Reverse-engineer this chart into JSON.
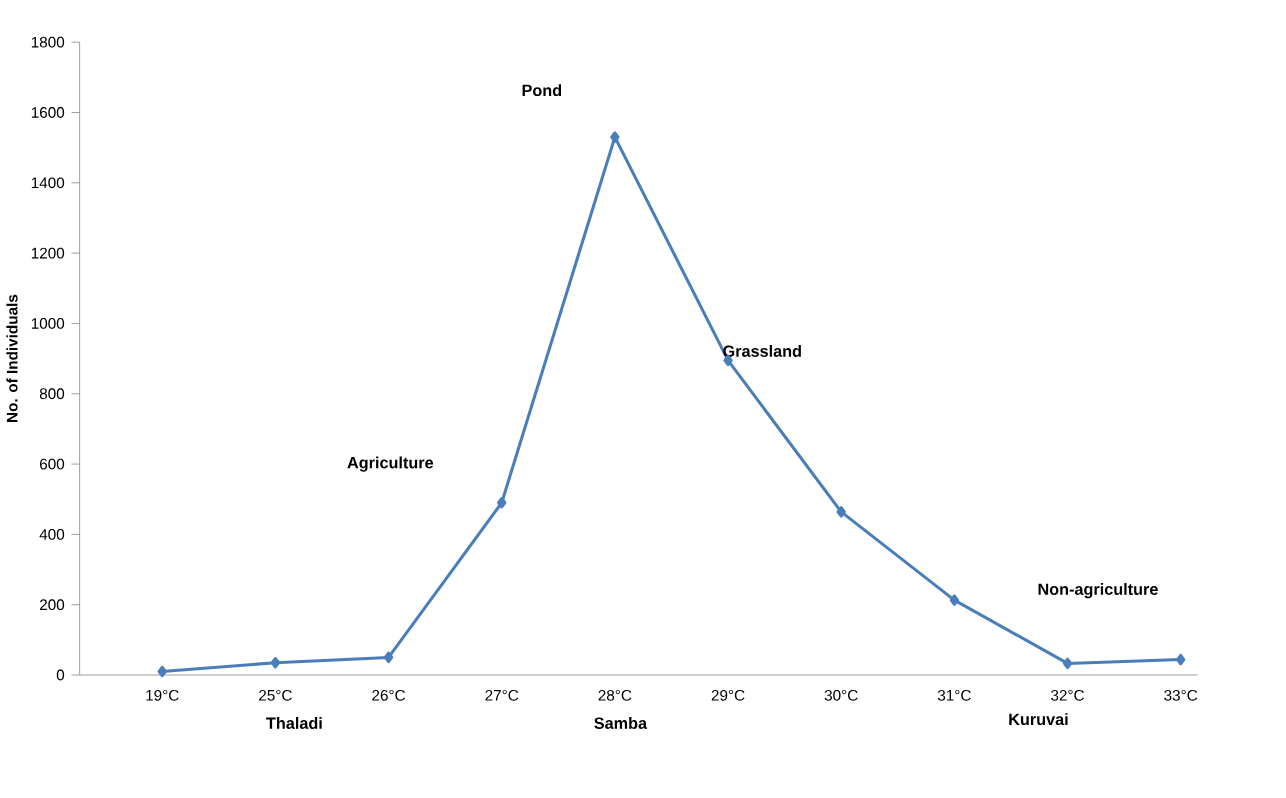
{
  "chart_data": {
    "type": "line",
    "ylabel": "No. of Individuals",
    "categories": [
      "19°C",
      "25°C",
      "26°C",
      "27°C",
      "28°C",
      "29°C",
      "30°C",
      "31°C",
      "32°C",
      "33°C"
    ],
    "series": [
      {
        "color": "#4a7ebb",
        "values": [
          10,
          35,
          50,
          490,
          1530,
          895,
          464,
          213,
          33,
          44
        ]
      }
    ],
    "ylim": [
      0,
      1800
    ],
    "yticks": [
      0,
      200,
      400,
      600,
      800,
      1000,
      1200,
      1400,
      1600,
      1800
    ],
    "marker": "diamond",
    "line_style": "solid",
    "grid": false,
    "annotations": [
      "Agriculture",
      "Pond",
      "Grassland",
      "Non-agriculture",
      "Thaladi",
      "Samba",
      "Kuruvai"
    ]
  }
}
